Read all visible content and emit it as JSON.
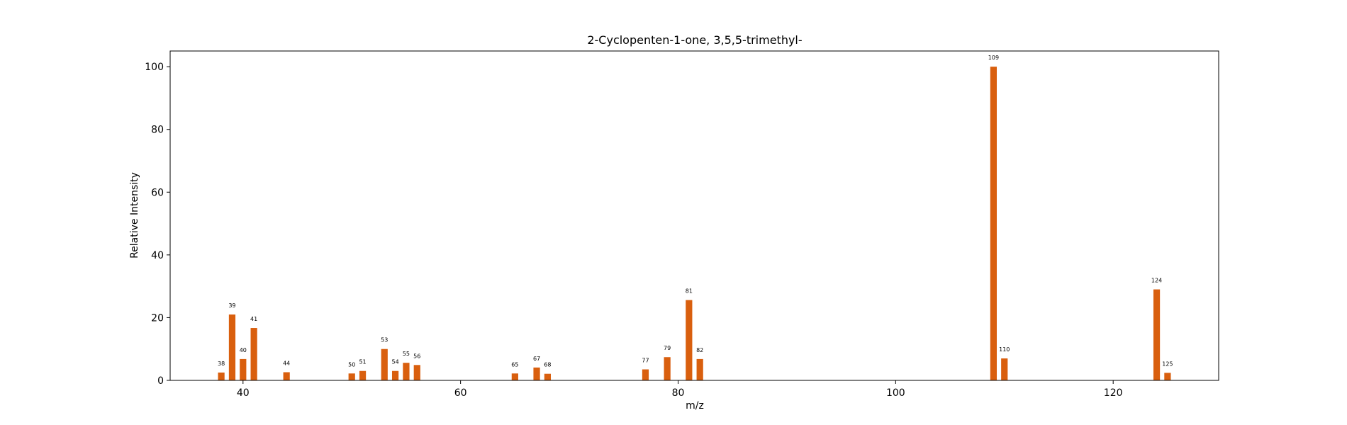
{
  "chart_data": {
    "type": "bar",
    "title": "2-Cyclopenten-1-one, 3,5,5-trimethyl-",
    "xlabel": "m/z",
    "ylabel": "Relative Intensity",
    "xlim": [
      33.3,
      129.7
    ],
    "ylim": [
      0,
      105
    ],
    "x_ticks": [
      40,
      60,
      80,
      100,
      120
    ],
    "y_ticks": [
      0,
      20,
      40,
      60,
      80,
      100
    ],
    "grid": false,
    "bar_color": "#d95f0e",
    "x": [
      38,
      39,
      40,
      41,
      44,
      50,
      51,
      53,
      54,
      55,
      56,
      65,
      67,
      68,
      77,
      79,
      81,
      82,
      109,
      110,
      124,
      125
    ],
    "values": [
      2.5,
      21.0,
      6.8,
      16.7,
      2.6,
      2.2,
      3.0,
      10.0,
      3.0,
      5.6,
      4.9,
      2.2,
      4.1,
      2.1,
      3.5,
      7.4,
      25.6,
      6.8,
      100.0,
      7.0,
      29.0,
      2.4
    ],
    "labels": [
      "38",
      "39",
      "40",
      "41",
      "44",
      "50",
      "51",
      "53",
      "54",
      "55",
      "56",
      "65",
      "67",
      "68",
      "77",
      "79",
      "81",
      "82",
      "109",
      "110",
      "124",
      "125"
    ]
  }
}
